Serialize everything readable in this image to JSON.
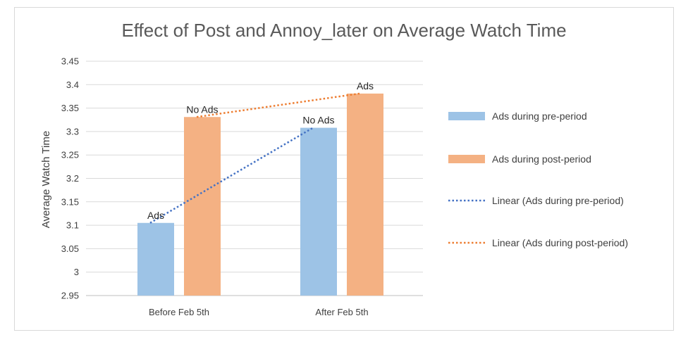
{
  "chart_data": {
    "type": "bar",
    "title": "Effect of Post and Annoy_later on Average Watch Time",
    "ylabel": "Average Watch Time",
    "xlabel": "",
    "ylim": [
      2.95,
      3.45
    ],
    "yticks": [
      "2.95",
      "3",
      "3.05",
      "3.1",
      "3.15",
      "3.2",
      "3.25",
      "3.3",
      "3.35",
      "3.4",
      "3.45"
    ],
    "categories": [
      "Before Feb 5th",
      "After Feb 5th"
    ],
    "series": [
      {
        "name": "Ads during pre-period",
        "values": [
          3.105,
          3.308
        ],
        "data_labels": [
          "Ads",
          "No Ads"
        ],
        "color": "#9dc3e6"
      },
      {
        "name": "Ads during post-period",
        "values": [
          3.331,
          3.381
        ],
        "data_labels": [
          "No Ads",
          "Ads"
        ],
        "color": "#f4b183"
      }
    ],
    "trendlines": [
      {
        "name": "Linear (Ads during pre-period)",
        "values": [
          3.105,
          3.308
        ],
        "color": "#4472c4",
        "style": "dotted"
      },
      {
        "name": "Linear (Ads during post-period)",
        "values": [
          3.331,
          3.381
        ],
        "color": "#ed7d31",
        "style": "dotted"
      }
    ],
    "legend_position": "right",
    "grid": true
  }
}
